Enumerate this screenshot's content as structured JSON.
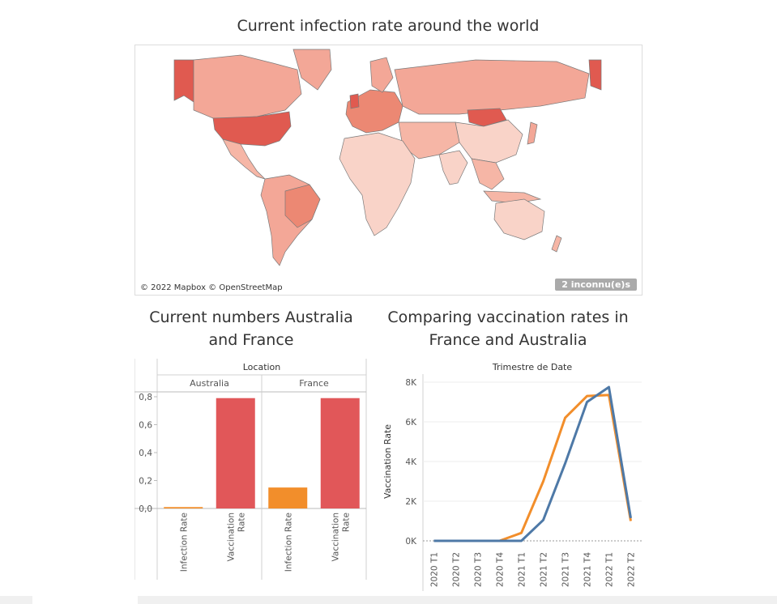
{
  "map": {
    "title": "Current infection rate around the world",
    "credit": "© 2022 Mapbox © OpenStreetMap",
    "unknown_badge": "2 inconnu(e)s",
    "colors": {
      "low": "#f9d3c8",
      "mid": "#f3a797",
      "high": "#e05a50",
      "ocean": "#ffffff",
      "border": "#7a7a7a"
    }
  },
  "chart_data": [
    {
      "type": "bar",
      "title": "Current numbers Australia and France",
      "header": "Location",
      "groups": [
        "Australia",
        "France"
      ],
      "categories": [
        "Infection Rate",
        "Vaccination Rate"
      ],
      "category_lines": [
        [
          "Infection Rate"
        ],
        [
          "Vaccination",
          "Rate"
        ]
      ],
      "series": [
        {
          "group": "Australia",
          "values": [
            0.01,
            0.79
          ]
        },
        {
          "group": "France",
          "values": [
            0.15,
            0.79
          ]
        }
      ],
      "colors": [
        "#f28e2b",
        "#e15759"
      ],
      "yticks": [
        "0,0",
        "0,2",
        "0,4",
        "0,6",
        "0,8"
      ],
      "ytick_values": [
        0,
        0.2,
        0.4,
        0.6,
        0.8
      ],
      "ylim": [
        0,
        0.82
      ],
      "grid": false
    },
    {
      "type": "line",
      "title": "Comparing vaccination rates in France and Australia",
      "header": "Trimestre de Date",
      "ylabel": "Vaccination Rate",
      "x": [
        "2020 T1",
        "2020 T2",
        "2020 T3",
        "2020 T4",
        "2021 T1",
        "2021 T2",
        "2021 T3",
        "2021 T4",
        "2022 T1",
        "2022 T2"
      ],
      "series": [
        {
          "color": "#f28e2b",
          "values": [
            0,
            0,
            0,
            0,
            400,
            3000,
            6200,
            7300,
            7350,
            1000
          ]
        },
        {
          "color": "#4e79a7",
          "values": [
            0,
            0,
            0,
            0,
            0,
            1050,
            3900,
            7000,
            7750,
            1150
          ]
        }
      ],
      "yticks": [
        "0K",
        "2K",
        "4K",
        "6K",
        "8K"
      ],
      "ytick_values": [
        0,
        2000,
        4000,
        6000,
        8000
      ],
      "ylim": [
        0,
        8000
      ],
      "grid": true
    }
  ]
}
